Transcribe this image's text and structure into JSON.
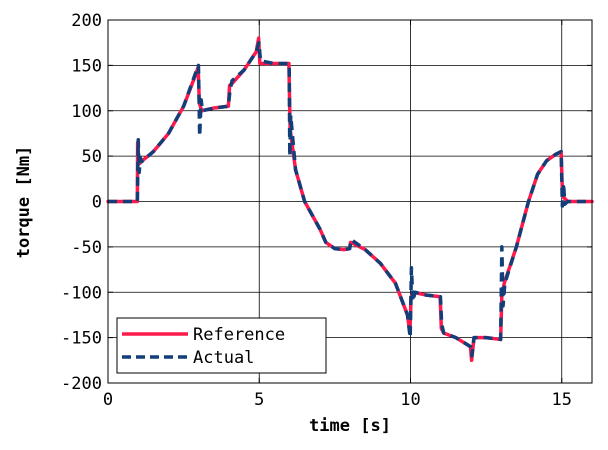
{
  "chart_data": {
    "type": "line",
    "xlabel": "time [s]",
    "ylabel": "torque [Nm]",
    "xlim": [
      0,
      16
    ],
    "ylim": [
      -200,
      200
    ],
    "xticks": [
      0,
      5,
      10,
      15
    ],
    "yticks": [
      -200,
      -150,
      -100,
      -50,
      0,
      50,
      100,
      150,
      200
    ],
    "grid": true,
    "legend_position": "bottom-left",
    "series": [
      {
        "name": "Reference",
        "color": "#ff1a4d",
        "dash": "solid",
        "x": [
          0,
          0.97,
          0.98,
          1.02,
          1.05,
          1.1,
          1.5,
          2.0,
          2.5,
          2.9,
          2.98,
          3.02,
          3.1,
          3.5,
          3.98,
          4.02,
          4.1,
          4.5,
          4.9,
          4.98,
          5.02,
          5.1,
          5.5,
          5.98,
          6.02,
          6.2,
          6.5,
          6.8,
          7.0,
          7.2,
          7.5,
          7.8,
          7.98,
          8.02,
          8.5,
          9.0,
          9.5,
          9.9,
          9.98,
          10.02,
          10.1,
          10.5,
          10.98,
          11.02,
          11.1,
          11.5,
          11.98,
          12.02,
          12.1,
          12.5,
          12.98,
          13.02,
          13.1,
          13.5,
          13.9,
          14.2,
          14.5,
          14.8,
          14.98,
          15.02,
          15.05,
          15.2,
          15.5,
          16
        ],
        "y": [
          0,
          0,
          65,
          45,
          42,
          44,
          55,
          75,
          105,
          140,
          148,
          108,
          100,
          103,
          105,
          128,
          130,
          145,
          165,
          180,
          152,
          152,
          152,
          152,
          80,
          35,
          0,
          -18,
          -30,
          -45,
          -52,
          -53,
          -52,
          -45,
          -53,
          -68,
          -90,
          -125,
          -145,
          -105,
          -100,
          -103,
          -105,
          -140,
          -145,
          -150,
          -160,
          -175,
          -150,
          -150,
          -152,
          -103,
          -90,
          -50,
          0,
          30,
          45,
          52,
          55,
          12,
          5,
          0,
          0,
          0
        ]
      },
      {
        "name": "Actual",
        "color": "#123f7a",
        "dash": "dashed",
        "x": [
          0,
          0.97,
          1.0,
          1.03,
          1.07,
          1.12,
          1.5,
          2.0,
          2.5,
          2.9,
          2.99,
          3.03,
          3.08,
          3.12,
          3.5,
          3.98,
          4.03,
          4.1,
          4.5,
          4.9,
          4.99,
          5.04,
          5.5,
          5.99,
          6.01,
          6.04,
          6.2,
          6.5,
          6.8,
          7.0,
          7.2,
          7.5,
          7.8,
          7.99,
          8.04,
          8.5,
          9.0,
          9.5,
          9.9,
          9.99,
          10.03,
          10.08,
          10.15,
          10.5,
          10.99,
          11.03,
          11.1,
          11.5,
          11.99,
          12.03,
          12.1,
          12.5,
          12.98,
          13.02,
          13.06,
          13.12,
          13.5,
          13.9,
          14.2,
          14.5,
          14.8,
          14.98,
          15.02,
          15.06,
          15.1,
          15.2,
          15.5,
          16
        ],
        "y": [
          0,
          0,
          68,
          32,
          48,
          44,
          55,
          75,
          105,
          142,
          150,
          72,
          112,
          100,
          103,
          105,
          122,
          133,
          145,
          165,
          175,
          155,
          152,
          152,
          50,
          95,
          35,
          0,
          -18,
          -30,
          -45,
          -52,
          -53,
          -52,
          -42,
          -53,
          -68,
          -90,
          -125,
          -150,
          -73,
          -110,
          -100,
          -103,
          -105,
          -135,
          -145,
          -150,
          -160,
          -170,
          -150,
          -150,
          -152,
          -50,
          -115,
          -90,
          -50,
          0,
          30,
          45,
          52,
          55,
          -5,
          20,
          -3,
          0,
          0,
          0
        ]
      }
    ]
  }
}
